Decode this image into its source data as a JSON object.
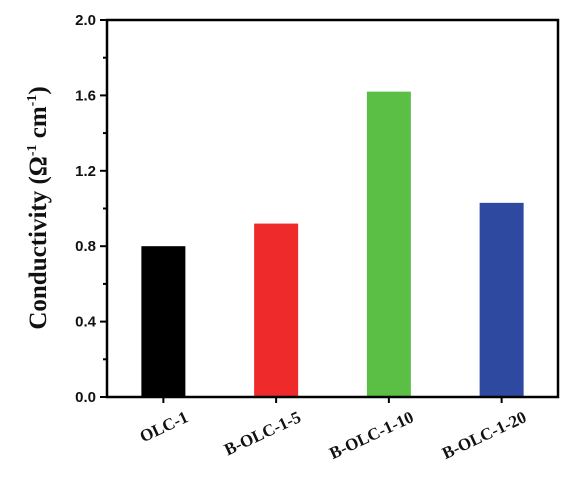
{
  "chart_data": {
    "type": "bar",
    "categories": [
      "OLC-1",
      "B-OLC-1-5",
      "B-OLC-1-10",
      "B-OLC-1-20"
    ],
    "values": [
      0.8,
      0.92,
      1.62,
      1.03
    ],
    "colors": [
      "#000000",
      "#ee2a2a",
      "#5cbf45",
      "#2e4aa0"
    ],
    "title": "",
    "xlabel": "",
    "ylabel": {
      "prefix": "Conductivity (Ω",
      "sup1": "-1",
      "middle": " cm",
      "sup2": "-1",
      "suffix": ")"
    },
    "ylim": [
      0.0,
      2.0
    ],
    "yticks": [
      "0.0",
      "0.4",
      "0.8",
      "1.2",
      "1.6",
      "2.0"
    ],
    "ytick_values": [
      0.0,
      0.4,
      0.8,
      1.2,
      1.6,
      2.0
    ],
    "grid": false,
    "legend": "none"
  }
}
